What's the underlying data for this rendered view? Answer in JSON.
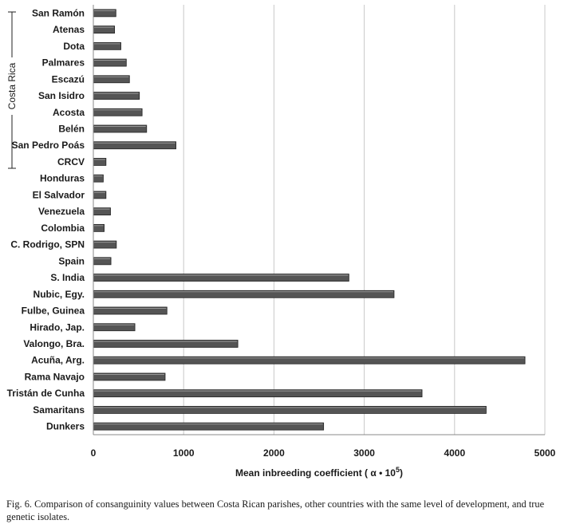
{
  "chart_data": {
    "type": "bar",
    "orientation": "horizontal",
    "categories": [
      "San Ramón",
      "Atenas",
      "Dota",
      "Palmares",
      "Escazú",
      "San Isidro",
      "Acosta",
      "Belén",
      "San Pedro Poás",
      "CRCV",
      "Honduras",
      "El Salvador",
      "Venezuela",
      "Colombia",
      "C. Rodrigo, SPN",
      "Spain",
      "S. India",
      "Nubic, Egy.",
      "Fulbe, Guinea",
      "Hirado, Jap.",
      "Valongo, Bra.",
      "Acuña, Arg.",
      "Rama Navajo",
      "Tristán de Cunha",
      "Samaritans",
      "Dunkers"
    ],
    "values": [
      250,
      235,
      305,
      365,
      400,
      510,
      540,
      590,
      915,
      140,
      110,
      140,
      190,
      120,
      255,
      195,
      2830,
      3330,
      815,
      460,
      1600,
      4780,
      795,
      3640,
      4350,
      2550
    ],
    "xlim": [
      0,
      5000
    ],
    "xticks": [
      0,
      1000,
      2000,
      3000,
      4000,
      5000
    ],
    "xticks_labels": [
      "0",
      "1000",
      "2000",
      "3000",
      "4000",
      "5000"
    ],
    "xlabel": "Mean inbreeding coefficient ( α • 10",
    "xlabel_exponent": "5",
    "xlabel_close": ")",
    "group_label": "Costa Rica",
    "group_span": [
      "San Ramón",
      "CRCV"
    ],
    "grid": "vertical",
    "bar_color": "#555555"
  },
  "caption": "Fig. 6. Comparison of consanguinity values between Costa Rican parishes, other countries with the same level of development, and true genetic isolates."
}
